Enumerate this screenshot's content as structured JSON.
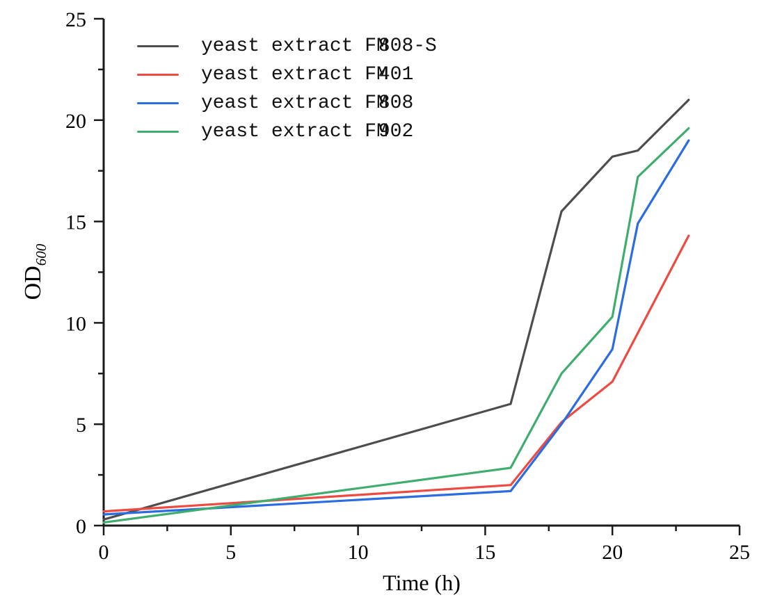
{
  "figure": {
    "background": "#ffffff",
    "axis_color": "#1a1a1a"
  },
  "chart_data": {
    "type": "line",
    "title": "",
    "xlabel": "Time (h)",
    "ylabel": "OD600",
    "ylabel_main": "OD",
    "ylabel_sub": "600",
    "xlim": [
      0,
      25
    ],
    "ylim": [
      0,
      25
    ],
    "x_ticks": [
      0,
      5,
      10,
      15,
      20,
      25
    ],
    "y_ticks": [
      0,
      5,
      10,
      15,
      20,
      25
    ],
    "minor_tick_step": 2.5,
    "grid": false,
    "legend_position": "upper-left-inside",
    "series": [
      {
        "name": "yeast extract FM808-S",
        "name_prefix": "yeast extract FM",
        "name_code": "808-S",
        "color": "#4d4d4d",
        "points": [
          [
            0,
            0.3
          ],
          [
            16,
            6.0
          ],
          [
            18,
            15.5
          ],
          [
            20,
            18.2
          ],
          [
            21,
            18.5
          ],
          [
            23,
            21.0
          ]
        ]
      },
      {
        "name": "yeast extract FM401",
        "name_prefix": "yeast extract FM",
        "name_code": "401",
        "color": "#ed4a42",
        "points": [
          [
            0,
            0.7
          ],
          [
            16,
            2.0
          ],
          [
            18,
            5.1
          ],
          [
            20,
            7.1
          ],
          [
            23,
            14.3
          ]
        ]
      },
      {
        "name": "yeast extract FM808",
        "name_prefix": "yeast extract FM",
        "name_code": "808",
        "color": "#2a6de0",
        "points": [
          [
            0,
            0.55
          ],
          [
            16,
            1.7
          ],
          [
            18,
            5.0
          ],
          [
            20,
            8.7
          ],
          [
            21,
            14.9
          ],
          [
            23,
            19.0
          ]
        ]
      },
      {
        "name": "yeast extract FM902",
        "name_prefix": "yeast extract FM",
        "name_code": "902",
        "color": "#3ead6e",
        "points": [
          [
            0,
            0.15
          ],
          [
            16,
            2.85
          ],
          [
            18,
            7.5
          ],
          [
            20,
            10.3
          ],
          [
            21,
            17.2
          ],
          [
            23,
            19.6
          ]
        ]
      }
    ]
  }
}
